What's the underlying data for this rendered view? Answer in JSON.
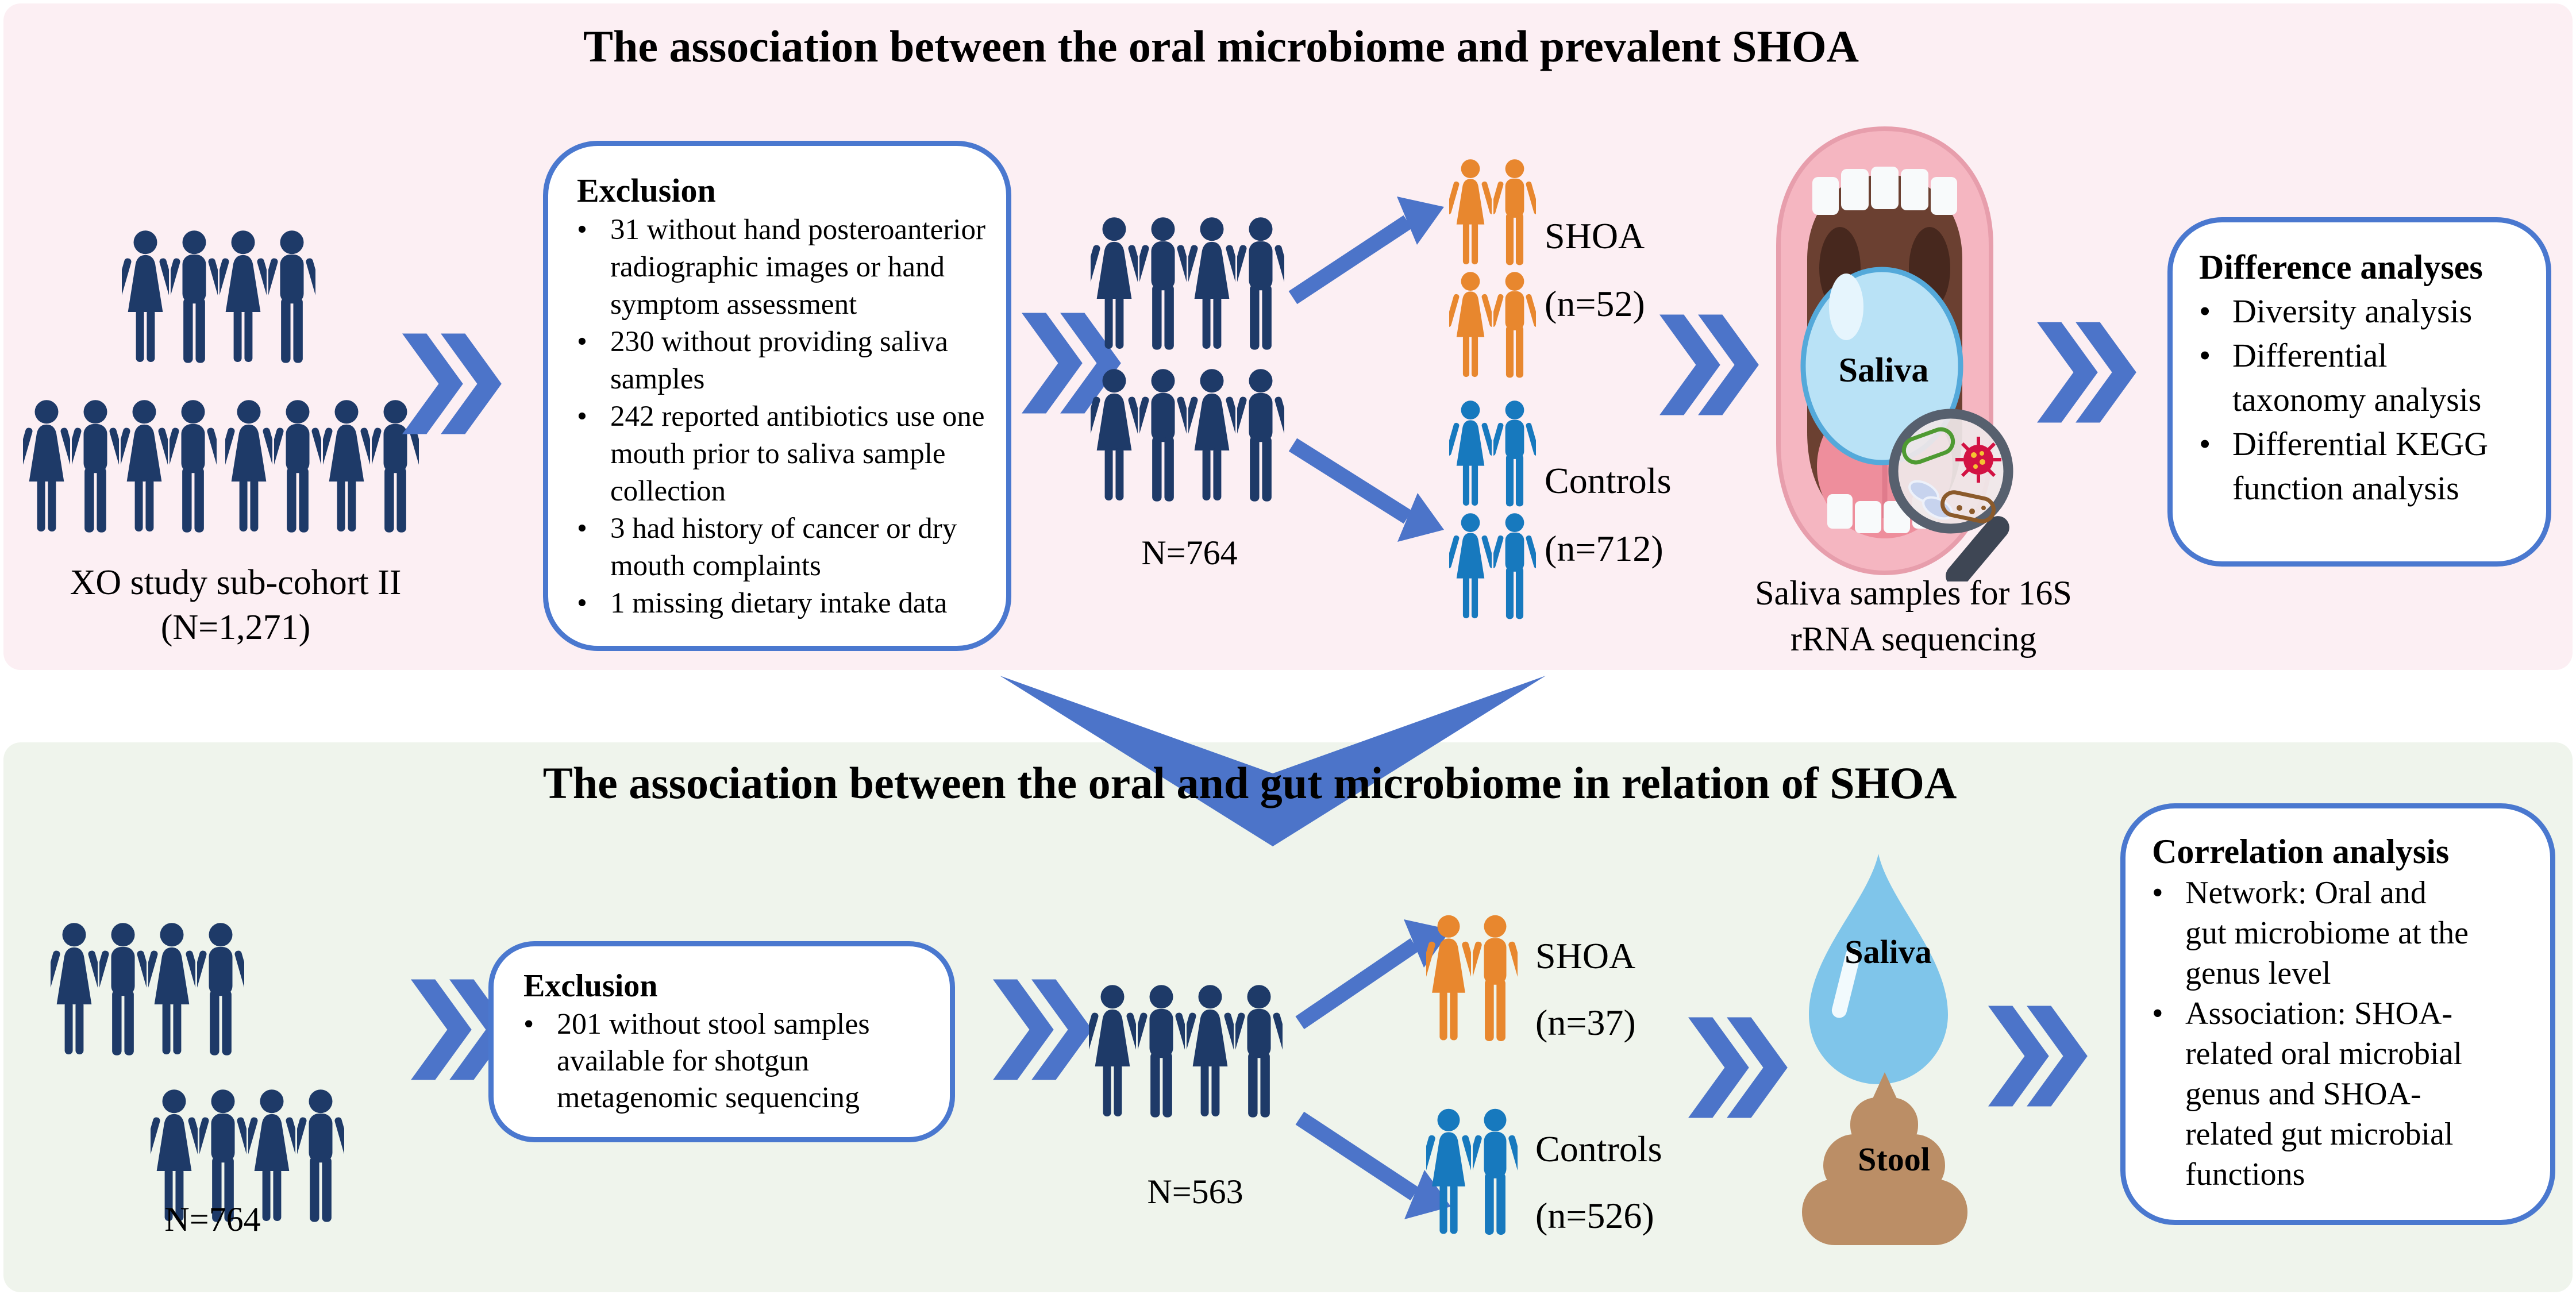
{
  "colors": {
    "panel_pink": "#FCEFF3",
    "panel_green": "#EFF4EC",
    "accent_blue": "#4C74C9",
    "box_border": "#4A78CF",
    "navy_person": "#1E3A68",
    "orange_person": "#E8872E",
    "control_blue_person": "#1779BE",
    "saliva_blue": "#7FC5EA",
    "saliva_bubble": "#B9E2F6",
    "stool_brown": "#BB8E66"
  },
  "panel_top": {
    "title": "The association between the oral microbiome and prevalent SHOA",
    "cohort_label": "XO study sub-cohort II\n(N=1,271)",
    "exclusion_box": {
      "title": "Exclusion",
      "bullets": [
        "31 without hand posteroanterior\nradiographic images or hand\nsymptom assessment",
        "230 without providing saliva\nsamples",
        "242 reported antibiotics use one\nmouth prior to saliva sample\ncollection",
        "3 had history of cancer or dry\nmouth complaints",
        "1 missing dietary intake data"
      ]
    },
    "n_label": "N=764",
    "shoa_label": "SHOA\n(n=52)",
    "controls_label": "Controls\n(n=712)",
    "mouth_saliva_label": "Saliva",
    "saliva_caption": "Saliva samples for 16S\nrRNA sequencing",
    "analysis_box": {
      "title": "Difference analyses",
      "bullets": [
        "Diversity analysis",
        "Differential\ntaxonomy analysis",
        "Differential KEGG\nfunction analysis"
      ]
    }
  },
  "panel_bottom": {
    "title": "The association between the oral and gut microbiome in relation of SHOA",
    "n_label_left": "N=764",
    "exclusion_box": {
      "title": "Exclusion",
      "bullets": [
        "201 without stool samples\navailable for shotgun\nmetagenomic sequencing"
      ]
    },
    "n_label_mid": "N=563",
    "shoa_label": "SHOA\n(n=37)",
    "controls_label": "Controls\n(n=526)",
    "saliva_label": "Saliva",
    "stool_label": "Stool",
    "analysis_box": {
      "title": "Correlation analysis",
      "bullets": [
        "Network: Oral and\ngut microbiome at the\ngenus level",
        "Association:  SHOA-\nrelated oral microbial\ngenus and SHOA-\nrelated gut microbial\nfunctions"
      ]
    }
  },
  "icons": {
    "cohort_row1": "FMFM",
    "cohort_row2a": "FMFM",
    "cohort_row2b": "FMFM",
    "study_top": "FMFM,FMFM",
    "shoa_top_group": "FM,FM",
    "controls_top_group": "FM,FM",
    "cohort2_row1": "FMFM",
    "cohort2_row2": "FMFM",
    "study_bottom": "FMFM",
    "shoa_bottom_pair": "FM",
    "controls_bottom_pair": "FM"
  }
}
